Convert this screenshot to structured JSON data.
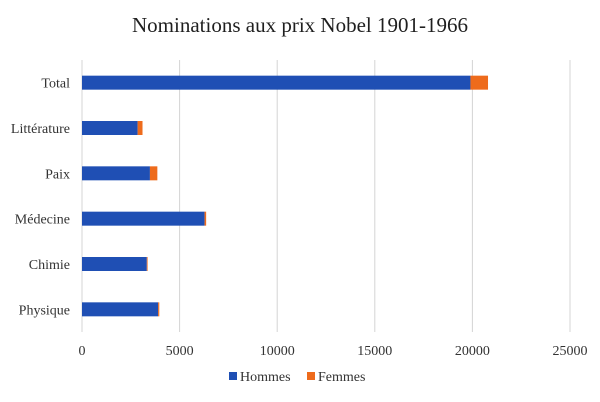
{
  "chart_data": {
    "type": "bar",
    "orientation": "horizontal",
    "stacked": true,
    "title": "Nominations aux prix Nobel 1901-1966",
    "categories": [
      "Total",
      "Littérature",
      "Paix",
      "Médecine",
      "Chimie",
      "Physique"
    ],
    "series": [
      {
        "name": "Hommes",
        "color": "#1f4fb4",
        "values": [
          19900,
          2850,
          3480,
          6280,
          3320,
          3900
        ]
      },
      {
        "name": "Femmes",
        "color": "#ee6b1c",
        "values": [
          900,
          250,
          380,
          80,
          40,
          60
        ]
      }
    ],
    "xlim": [
      0,
      25000
    ],
    "xticks": [
      0,
      5000,
      10000,
      15000,
      20000,
      25000
    ],
    "grid": "vertical",
    "legend": "bottom"
  }
}
